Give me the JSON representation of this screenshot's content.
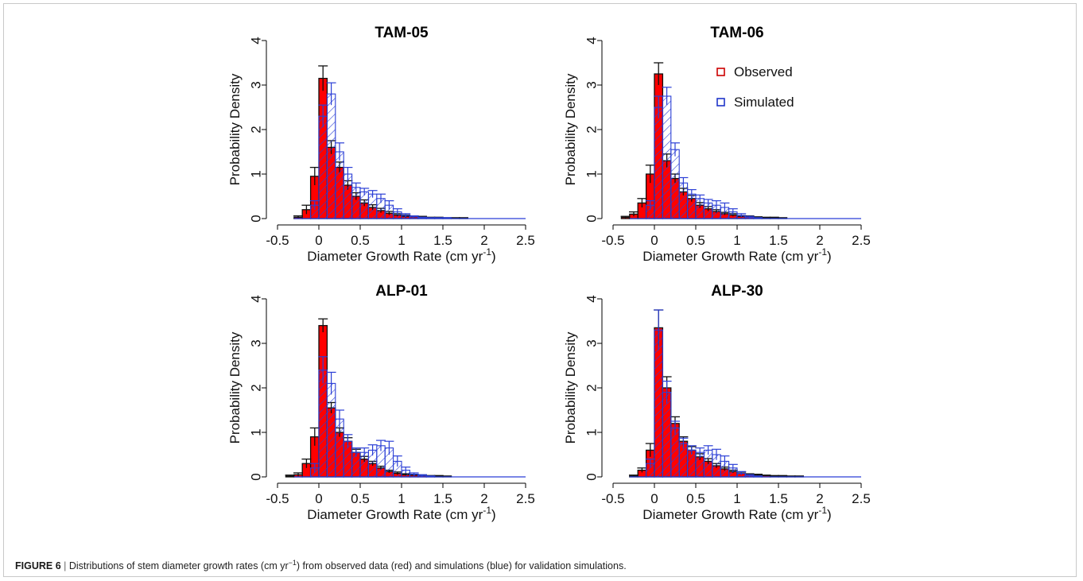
{
  "caption": {
    "label": "FIGURE 6",
    "separator": " | ",
    "text_before": "Distributions of stem diameter growth rates (cm yr",
    "superscript": "−1",
    "text_after": ") from observed data (red) and simulations (blue) for validation simulations."
  },
  "colors": {
    "observed_fill": "#ff0000",
    "observed_border": "#111111",
    "simulated": "#2b3fd6",
    "axis": "#000000"
  },
  "legend": {
    "position": "top-right of TAM-06 panel",
    "entries": [
      {
        "name": "Observed",
        "color": "#cc0000"
      },
      {
        "name": "Simulated",
        "color": "#1f35c9"
      }
    ]
  },
  "chart_data": [
    {
      "type": "bar",
      "title": "TAM-05",
      "xlabel": "Diameter Growth Rate (cm yr",
      "xlabel_sup": "-1",
      "xlabel_end": ")",
      "ylabel": "Probability Density",
      "xlim": [
        -0.5,
        2.5
      ],
      "ylim": [
        0,
        4
      ],
      "xticks": [
        "-0.5",
        "0",
        "0.5",
        "1",
        "1.5",
        "2",
        "2.5"
      ],
      "yticks": [
        "0",
        "1",
        "2",
        "3",
        "4"
      ],
      "bin_width": 0.1,
      "series": [
        {
          "name": "Observed",
          "x": [
            -0.3,
            -0.2,
            -0.1,
            0,
            0.1,
            0.2,
            0.3,
            0.4,
            0.5,
            0.6,
            0.7,
            0.8,
            0.9,
            1.0,
            1.1,
            1.2,
            1.3,
            1.4,
            1.5,
            1.6,
            1.7
          ],
          "values": [
            0.03,
            0.2,
            0.95,
            3.15,
            1.6,
            1.15,
            0.75,
            0.5,
            0.35,
            0.25,
            0.18,
            0.12,
            0.08,
            0.05,
            0.04,
            0.03,
            0.02,
            0.02,
            0.01,
            0.01,
            0.01
          ],
          "errors": [
            0.03,
            0.1,
            0.2,
            0.28,
            0.15,
            0.12,
            0.1,
            0.08,
            0.07,
            0.06,
            0.05,
            0.04,
            0.03,
            0.03,
            0.02,
            0.02,
            0.01,
            0.01,
            0.01,
            0.01,
            0.01
          ]
        },
        {
          "name": "Simulated",
          "x": [
            -0.3,
            -0.2,
            -0.1,
            0,
            0.1,
            0.2,
            0.3,
            0.4,
            0.5,
            0.6,
            0.7,
            0.8,
            0.9,
            1.0,
            1.1,
            1.2,
            1.3,
            1.4,
            1.5,
            1.6,
            1.7
          ],
          "values": [
            0.0,
            0.0,
            0.3,
            2.3,
            2.8,
            1.5,
            1.0,
            0.7,
            0.6,
            0.55,
            0.45,
            0.3,
            0.15,
            0.07,
            0.04,
            0.02,
            0.01,
            0.01,
            0.01,
            0.0,
            0.0
          ],
          "errors": [
            0.0,
            0.0,
            0.1,
            0.25,
            0.25,
            0.2,
            0.15,
            0.1,
            0.08,
            0.08,
            0.1,
            0.1,
            0.07,
            0.04,
            0.02,
            0.01,
            0.01,
            0.01,
            0.01,
            0.0,
            0.0
          ]
        }
      ]
    },
    {
      "type": "bar",
      "title": "TAM-06",
      "xlabel": "Diameter Growth Rate (cm yr",
      "xlabel_sup": "-1",
      "xlabel_end": ")",
      "ylabel": "Probability Density",
      "xlim": [
        -0.5,
        2.5
      ],
      "ylim": [
        0,
        4
      ],
      "xticks": [
        "-0.5",
        "0",
        "0.5",
        "1",
        "1.5",
        "2",
        "2.5"
      ],
      "yticks": [
        "0",
        "1",
        "2",
        "3",
        "4"
      ],
      "bin_width": 0.1,
      "series": [
        {
          "name": "Observed",
          "x": [
            -0.4,
            -0.3,
            -0.2,
            -0.1,
            0,
            0.1,
            0.2,
            0.3,
            0.4,
            0.5,
            0.6,
            0.7,
            0.8,
            0.9,
            1.0,
            1.1,
            1.2,
            1.3,
            1.4,
            1.5
          ],
          "values": [
            0.03,
            0.1,
            0.35,
            1.0,
            3.25,
            1.3,
            0.9,
            0.6,
            0.45,
            0.3,
            0.22,
            0.16,
            0.11,
            0.08,
            0.05,
            0.04,
            0.03,
            0.02,
            0.02,
            0.01
          ],
          "errors": [
            0.02,
            0.05,
            0.1,
            0.2,
            0.25,
            0.15,
            0.1,
            0.08,
            0.07,
            0.06,
            0.05,
            0.04,
            0.03,
            0.03,
            0.02,
            0.02,
            0.01,
            0.01,
            0.01,
            0.01
          ]
        },
        {
          "name": "Simulated",
          "x": [
            -0.3,
            -0.2,
            -0.1,
            0,
            0.1,
            0.2,
            0.3,
            0.4,
            0.5,
            0.6,
            0.7,
            0.8,
            0.9,
            1.0,
            1.1,
            1.2
          ],
          "values": [
            0.0,
            0.0,
            0.3,
            2.5,
            2.75,
            1.55,
            0.8,
            0.55,
            0.45,
            0.35,
            0.3,
            0.25,
            0.15,
            0.07,
            0.03,
            0.01
          ],
          "errors": [
            0.0,
            0.0,
            0.1,
            0.25,
            0.2,
            0.15,
            0.12,
            0.1,
            0.08,
            0.08,
            0.1,
            0.1,
            0.07,
            0.04,
            0.02,
            0.01
          ]
        }
      ]
    },
    {
      "type": "bar",
      "title": "ALP-01",
      "xlabel": "Diameter Growth Rate (cm yr",
      "xlabel_sup": "-1",
      "xlabel_end": ")",
      "ylabel": "Probability Density",
      "xlim": [
        -0.5,
        2.5
      ],
      "ylim": [
        0,
        4
      ],
      "xticks": [
        "-0.5",
        "0",
        "0.5",
        "1",
        "1.5",
        "2",
        "2.5"
      ],
      "yticks": [
        "0",
        "1",
        "2",
        "3",
        "4"
      ],
      "bin_width": 0.1,
      "series": [
        {
          "name": "Observed",
          "x": [
            -0.4,
            -0.3,
            -0.2,
            -0.1,
            0,
            0.1,
            0.2,
            0.3,
            0.4,
            0.5,
            0.6,
            0.7,
            0.8,
            0.9,
            1.0,
            1.1,
            1.2,
            1.3,
            1.4,
            1.5
          ],
          "values": [
            0.02,
            0.05,
            0.3,
            0.9,
            3.4,
            1.55,
            1.0,
            0.8,
            0.55,
            0.4,
            0.3,
            0.2,
            0.12,
            0.08,
            0.05,
            0.04,
            0.03,
            0.02,
            0.02,
            0.01
          ],
          "errors": [
            0.02,
            0.04,
            0.1,
            0.2,
            0.15,
            0.12,
            0.1,
            0.08,
            0.07,
            0.06,
            0.05,
            0.04,
            0.03,
            0.03,
            0.02,
            0.02,
            0.01,
            0.01,
            0.01,
            0.01
          ]
        },
        {
          "name": "Simulated",
          "x": [
            -0.2,
            -0.1,
            0,
            0.1,
            0.2,
            0.3,
            0.4,
            0.5,
            0.6,
            0.7,
            0.8,
            0.9,
            1.0,
            1.1,
            1.2,
            1.3
          ],
          "values": [
            0.0,
            0.2,
            2.4,
            2.1,
            1.3,
            0.8,
            0.55,
            0.55,
            0.6,
            0.7,
            0.65,
            0.35,
            0.15,
            0.06,
            0.03,
            0.01
          ],
          "errors": [
            0.0,
            0.1,
            0.3,
            0.25,
            0.2,
            0.15,
            0.1,
            0.1,
            0.12,
            0.12,
            0.15,
            0.12,
            0.07,
            0.03,
            0.02,
            0.01
          ]
        }
      ]
    },
    {
      "type": "bar",
      "title": "ALP-30",
      "xlabel": "Diameter Growth Rate (cm yr",
      "xlabel_sup": "-1",
      "xlabel_end": ")",
      "ylabel": "Probability Density",
      "xlim": [
        -0.5,
        2.5
      ],
      "ylim": [
        0,
        4
      ],
      "xticks": [
        "-0.5",
        "0",
        "0.5",
        "1",
        "1.5",
        "2",
        "2.5"
      ],
      "yticks": [
        "0",
        "1",
        "2",
        "3",
        "4"
      ],
      "bin_width": 0.1,
      "series": [
        {
          "name": "Observed",
          "x": [
            -0.3,
            -0.2,
            -0.1,
            0,
            0.1,
            0.2,
            0.3,
            0.4,
            0.5,
            0.6,
            0.7,
            0.8,
            0.9,
            1.0,
            1.1,
            1.2,
            1.3,
            1.4,
            1.5,
            1.6,
            1.7
          ],
          "values": [
            0.02,
            0.15,
            0.6,
            3.35,
            2.0,
            1.2,
            0.8,
            0.6,
            0.45,
            0.35,
            0.25,
            0.18,
            0.12,
            0.08,
            0.05,
            0.04,
            0.03,
            0.02,
            0.02,
            0.01,
            0.01
          ],
          "errors": [
            0.02,
            0.05,
            0.15,
            0.4,
            0.25,
            0.15,
            0.1,
            0.08,
            0.07,
            0.06,
            0.05,
            0.04,
            0.03,
            0.03,
            0.02,
            0.02,
            0.01,
            0.01,
            0.01,
            0.01,
            0.01
          ]
        },
        {
          "name": "Simulated",
          "x": [
            -0.2,
            -0.1,
            0,
            0.1,
            0.2,
            0.3,
            0.4,
            0.5,
            0.6,
            0.7,
            0.8,
            0.9,
            1.0,
            1.1,
            1.2
          ],
          "values": [
            0.0,
            0.3,
            3.3,
            1.9,
            1.1,
            0.75,
            0.6,
            0.55,
            0.6,
            0.5,
            0.35,
            0.2,
            0.08,
            0.03,
            0.01
          ],
          "errors": [
            0.0,
            0.1,
            0.45,
            0.25,
            0.15,
            0.12,
            0.1,
            0.1,
            0.1,
            0.12,
            0.12,
            0.08,
            0.04,
            0.02,
            0.01
          ]
        }
      ]
    }
  ]
}
